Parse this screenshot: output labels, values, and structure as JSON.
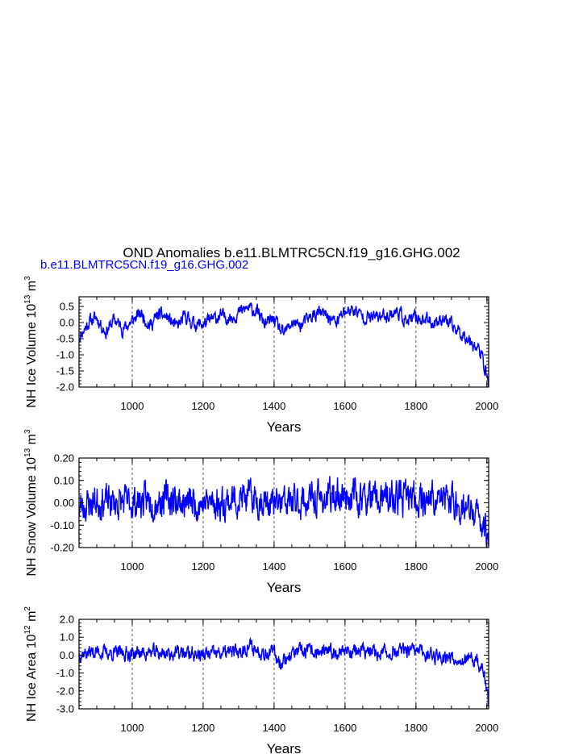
{
  "figure": {
    "title": "OND Anomalies b.e11.BLMTRC5CN.f19_g16.GHG.002",
    "subtitle": "b.e11.BLMTRC5CN.f19_g16.GHG.002",
    "subtitle_color": "#0000ff"
  },
  "chart_data": [
    {
      "type": "line",
      "ylabel": "NH Ice Volume 10",
      "ylabel_exp": "13",
      "ylabel_unit": " m",
      "ylabel_unit_exp": "3",
      "xlabel": "Years",
      "xlim": [
        850,
        2005
      ],
      "ylim": [
        -2.0,
        0.8
      ],
      "xticks": [
        "1000",
        "1200",
        "1400",
        "1600",
        "1800",
        "2000"
      ],
      "yticks": [
        "0.5",
        "0.0",
        "-0.5",
        "-1.0",
        "-1.5",
        "-2.0"
      ],
      "ytick_values": [
        0.5,
        0.0,
        -0.5,
        -1.0,
        -1.5,
        -2.0
      ],
      "xtick_values": [
        1000,
        1200,
        1400,
        1600,
        1800,
        2000
      ],
      "gridlines_x": [
        1000,
        1200,
        1400,
        1600,
        1800
      ],
      "series": [
        {
          "color": "#0000ff",
          "x_start": 850,
          "x_end": 2005,
          "y_key": [
            [
              850,
              -0.45
            ],
            [
              880,
              0.05
            ],
            [
              900,
              0.15
            ],
            [
              925,
              -0.3
            ],
            [
              950,
              0.1
            ],
            [
              975,
              -0.2
            ],
            [
              1000,
              0.05
            ],
            [
              1025,
              0.3
            ],
            [
              1050,
              -0.1
            ],
            [
              1075,
              0.25
            ],
            [
              1100,
              0.15
            ],
            [
              1125,
              -0.15
            ],
            [
              1150,
              0.2
            ],
            [
              1175,
              -0.05
            ],
            [
              1200,
              -0.05
            ],
            [
              1225,
              0.1
            ],
            [
              1250,
              0.2
            ],
            [
              1275,
              0.15
            ],
            [
              1300,
              0.3
            ],
            [
              1325,
              0.45
            ],
            [
              1350,
              0.35
            ],
            [
              1375,
              -0.05
            ],
            [
              1400,
              0.1
            ],
            [
              1425,
              -0.4
            ],
            [
              1450,
              0.0
            ],
            [
              1475,
              -0.1
            ],
            [
              1500,
              0.15
            ],
            [
              1525,
              0.3
            ],
            [
              1550,
              0.2
            ],
            [
              1575,
              0.0
            ],
            [
              1600,
              0.35
            ],
            [
              1625,
              0.4
            ],
            [
              1650,
              0.2
            ],
            [
              1675,
              0.15
            ],
            [
              1700,
              0.2
            ],
            [
              1725,
              0.25
            ],
            [
              1750,
              0.35
            ],
            [
              1775,
              0.0
            ],
            [
              1800,
              0.15
            ],
            [
              1825,
              0.1
            ],
            [
              1850,
              0.0
            ],
            [
              1875,
              0.15
            ],
            [
              1900,
              -0.1
            ],
            [
              1925,
              -0.3
            ],
            [
              1950,
              -0.5
            ],
            [
              1975,
              -0.8
            ],
            [
              1990,
              -1.2
            ],
            [
              2005,
              -1.9
            ]
          ],
          "noise": 0.28,
          "seed": 11
        }
      ]
    },
    {
      "type": "line",
      "ylabel": "NH Snow Volume 10",
      "ylabel_exp": "13",
      "ylabel_unit": " m",
      "ylabel_unit_exp": "3",
      "xlabel": "Years",
      "xlim": [
        850,
        2005
      ],
      "ylim": [
        -0.2,
        0.2
      ],
      "xticks": [
        "1000",
        "1200",
        "1400",
        "1600",
        "1800",
        "2000"
      ],
      "yticks": [
        "0.20",
        "0.10",
        "0.00",
        "-0.10",
        "-0.20"
      ],
      "ytick_values": [
        0.2,
        0.1,
        0.0,
        -0.1,
        -0.2
      ],
      "xtick_values": [
        1000,
        1200,
        1400,
        1600,
        1800,
        2000
      ],
      "gridlines_x": [
        1000,
        1200,
        1400,
        1600,
        1800
      ],
      "series": [
        {
          "color": "#0000ff",
          "x_start": 850,
          "x_end": 2005,
          "y_key": [
            [
              850,
              -0.02
            ],
            [
              900,
              0.01
            ],
            [
              950,
              0.0
            ],
            [
              1000,
              0.0
            ],
            [
              1050,
              0.01
            ],
            [
              1100,
              0.02
            ],
            [
              1150,
              0.0
            ],
            [
              1200,
              0.0
            ],
            [
              1250,
              0.0
            ],
            [
              1300,
              0.02
            ],
            [
              1350,
              0.02
            ],
            [
              1400,
              -0.01
            ],
            [
              1450,
              0.0
            ],
            [
              1500,
              0.01
            ],
            [
              1550,
              0.02
            ],
            [
              1600,
              0.04
            ],
            [
              1650,
              0.02
            ],
            [
              1700,
              0.01
            ],
            [
              1750,
              0.02
            ],
            [
              1800,
              0.02
            ],
            [
              1850,
              0.02
            ],
            [
              1900,
              0.01
            ],
            [
              1930,
              -0.02
            ],
            [
              1960,
              -0.05
            ],
            [
              1985,
              -0.08
            ],
            [
              2005,
              -0.15
            ]
          ],
          "noise": 0.1,
          "seed": 23
        }
      ]
    },
    {
      "type": "line",
      "ylabel": "NH Ice Area 10",
      "ylabel_exp": "12",
      "ylabel_unit": " m",
      "ylabel_unit_exp": "2",
      "xlabel": "Years",
      "xlim": [
        850,
        2005
      ],
      "ylim": [
        -3.0,
        2.0
      ],
      "xticks": [
        "1000",
        "1200",
        "1400",
        "1600",
        "1800",
        "2000"
      ],
      "yticks": [
        "2.0",
        "1.0",
        "0.0",
        "-1.0",
        "-2.0",
        "-3.0"
      ],
      "ytick_values": [
        2.0,
        1.0,
        0.0,
        -1.0,
        -2.0,
        -3.0
      ],
      "xtick_values": [
        1000,
        1200,
        1400,
        1600,
        1800,
        2000
      ],
      "gridlines_x": [
        1000,
        1200,
        1400,
        1600,
        1800
      ],
      "series": [
        {
          "color": "#0000ff",
          "x_start": 850,
          "x_end": 2005,
          "y_key": [
            [
              850,
              0.1
            ],
            [
              900,
              0.2
            ],
            [
              950,
              0.1
            ],
            [
              1000,
              0.1
            ],
            [
              1050,
              0.15
            ],
            [
              1100,
              0.1
            ],
            [
              1150,
              0.1
            ],
            [
              1200,
              0.0
            ],
            [
              1250,
              0.1
            ],
            [
              1300,
              0.2
            ],
            [
              1330,
              0.5
            ],
            [
              1350,
              0.3
            ],
            [
              1400,
              0.1
            ],
            [
              1420,
              -0.4
            ],
            [
              1450,
              0.1
            ],
            [
              1500,
              0.2
            ],
            [
              1550,
              0.1
            ],
            [
              1600,
              0.3
            ],
            [
              1650,
              0.2
            ],
            [
              1700,
              0.1
            ],
            [
              1750,
              0.2
            ],
            [
              1800,
              0.2
            ],
            [
              1850,
              0.0
            ],
            [
              1900,
              -0.1
            ],
            [
              1950,
              -0.3
            ],
            [
              1975,
              -0.4
            ],
            [
              1990,
              -0.9
            ],
            [
              2005,
              -2.7
            ]
          ],
          "noise": 0.55,
          "seed": 37
        }
      ]
    }
  ]
}
